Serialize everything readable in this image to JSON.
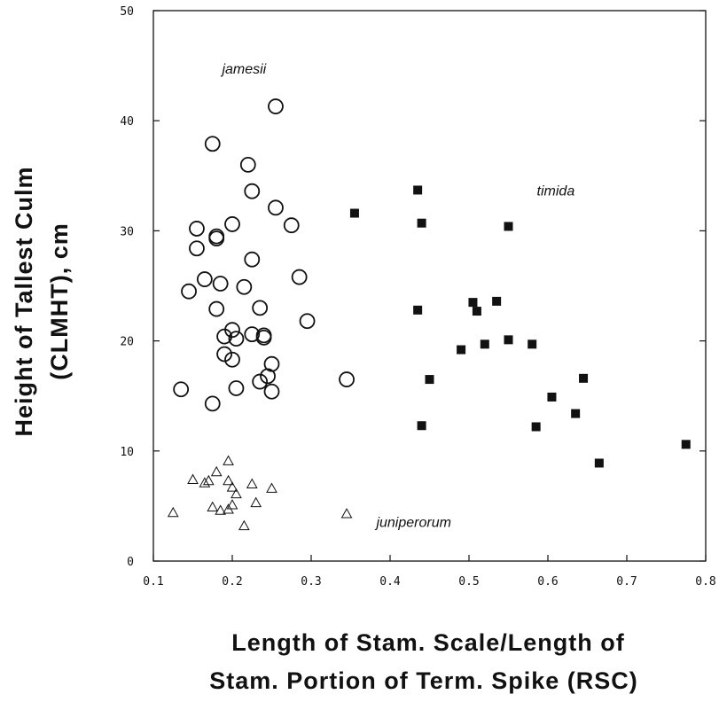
{
  "chart_data": {
    "type": "scatter",
    "title": "",
    "ylabel_lines": [
      "Height of Tallest Culm",
      "(CLMHT), cm"
    ],
    "xlabel_lines": [
      "Length of Stam. Scale/Length of",
      "Stam. Portion of Term. Spike (RSC)"
    ],
    "xlim": [
      0.1,
      0.8
    ],
    "ylim": [
      0,
      50
    ],
    "x_ticks": [
      0.1,
      0.2,
      0.3,
      0.4,
      0.5,
      0.6,
      0.7,
      0.8
    ],
    "x_tick_labels": [
      "0.1",
      "0.2",
      "0.3",
      "0.4",
      "0.5",
      "0.6",
      "0.7",
      "0.8"
    ],
    "y_ticks": [
      0,
      10,
      20,
      30,
      40,
      50
    ],
    "y_tick_labels": [
      "0",
      "10",
      "20",
      "30",
      "40",
      "50"
    ],
    "grid": false,
    "annotations": [
      {
        "text": "jamesii",
        "x": 0.215,
        "y": 44.3
      },
      {
        "text": "timida",
        "x": 0.61,
        "y": 33.2
      },
      {
        "text": "juniperorum",
        "x": 0.43,
        "y": 3.1
      }
    ],
    "series": [
      {
        "marker": "open-circle",
        "color": "#111111",
        "points": [
          [
            0.255,
            41.3
          ],
          [
            0.175,
            37.9
          ],
          [
            0.22,
            36.0
          ],
          [
            0.225,
            33.6
          ],
          [
            0.255,
            32.1
          ],
          [
            0.155,
            30.2
          ],
          [
            0.2,
            30.6
          ],
          [
            0.18,
            29.5
          ],
          [
            0.18,
            29.3
          ],
          [
            0.155,
            28.4
          ],
          [
            0.275,
            30.5
          ],
          [
            0.225,
            27.4
          ],
          [
            0.165,
            25.6
          ],
          [
            0.185,
            25.2
          ],
          [
            0.215,
            24.9
          ],
          [
            0.285,
            25.8
          ],
          [
            0.145,
            24.5
          ],
          [
            0.18,
            22.9
          ],
          [
            0.235,
            23.0
          ],
          [
            0.295,
            21.8
          ],
          [
            0.2,
            21.0
          ],
          [
            0.19,
            20.4
          ],
          [
            0.205,
            20.2
          ],
          [
            0.225,
            20.6
          ],
          [
            0.24,
            20.5
          ],
          [
            0.24,
            20.3
          ],
          [
            0.19,
            18.8
          ],
          [
            0.2,
            18.3
          ],
          [
            0.25,
            17.9
          ],
          [
            0.245,
            16.8
          ],
          [
            0.235,
            16.3
          ],
          [
            0.135,
            15.6
          ],
          [
            0.205,
            15.7
          ],
          [
            0.25,
            15.4
          ],
          [
            0.345,
            16.5
          ],
          [
            0.175,
            14.3
          ]
        ]
      },
      {
        "marker": "filled-square",
        "color": "#111111",
        "points": [
          [
            0.435,
            33.7
          ],
          [
            0.355,
            31.6
          ],
          [
            0.44,
            30.7
          ],
          [
            0.55,
            30.4
          ],
          [
            0.435,
            22.8
          ],
          [
            0.505,
            23.5
          ],
          [
            0.51,
            22.7
          ],
          [
            0.535,
            23.6
          ],
          [
            0.52,
            19.7
          ],
          [
            0.55,
            20.1
          ],
          [
            0.58,
            19.7
          ],
          [
            0.49,
            19.2
          ],
          [
            0.45,
            16.5
          ],
          [
            0.645,
            16.6
          ],
          [
            0.605,
            14.9
          ],
          [
            0.635,
            13.4
          ],
          [
            0.44,
            12.3
          ],
          [
            0.585,
            12.2
          ],
          [
            0.665,
            8.9
          ],
          [
            0.775,
            10.6
          ]
        ]
      },
      {
        "marker": "open-triangle",
        "color": "#111111",
        "points": [
          [
            0.195,
            9.1
          ],
          [
            0.18,
            8.1
          ],
          [
            0.15,
            7.4
          ],
          [
            0.165,
            7.1
          ],
          [
            0.17,
            7.3
          ],
          [
            0.195,
            7.3
          ],
          [
            0.225,
            7.0
          ],
          [
            0.25,
            6.6
          ],
          [
            0.2,
            6.7
          ],
          [
            0.205,
            6.1
          ],
          [
            0.23,
            5.3
          ],
          [
            0.2,
            5.1
          ],
          [
            0.175,
            4.9
          ],
          [
            0.185,
            4.6
          ],
          [
            0.195,
            4.7
          ],
          [
            0.125,
            4.4
          ],
          [
            0.215,
            3.2
          ],
          [
            0.345,
            4.3
          ]
        ]
      }
    ]
  }
}
